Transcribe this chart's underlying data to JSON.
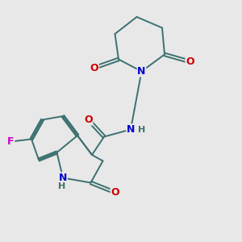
{
  "background_color": "#e8e8e8",
  "bond_color": "#3d7070",
  "atom_colors": {
    "N": "#0000cc",
    "O": "#cc0000",
    "F": "#cc00cc"
  },
  "font_size": 8.5,
  "lw": 1.4
}
